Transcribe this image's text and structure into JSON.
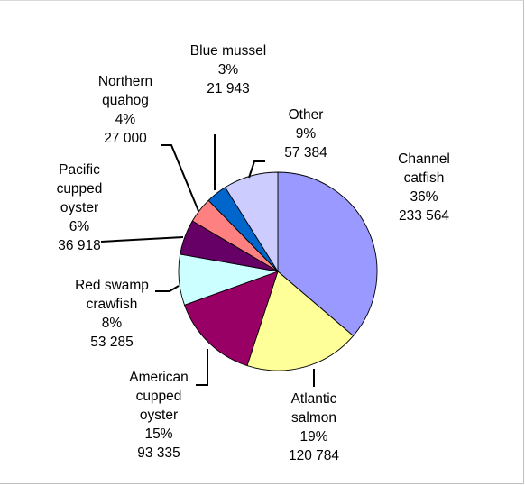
{
  "chart_data": {
    "type": "pie",
    "title": "",
    "legend": "none",
    "slices": [
      {
        "name": "Channel catfish",
        "name_lines": [
          "Channel",
          "catfish"
        ],
        "percent_label": "36%",
        "value": 233564,
        "value_label": "233 564",
        "color": "#9999FF"
      },
      {
        "name": "Atlantic salmon",
        "name_lines": [
          "Atlantic",
          "salmon"
        ],
        "percent_label": "19%",
        "value": 120784,
        "value_label": "120 784",
        "color": "#FFFF99"
      },
      {
        "name": "American cupped oyster",
        "name_lines": [
          "American",
          "cupped",
          "oyster"
        ],
        "percent_label": "15%",
        "value": 93335,
        "value_label": "93 335",
        "color": "#990066"
      },
      {
        "name": "Red swamp crawfish",
        "name_lines": [
          "Red swamp",
          "crawfish"
        ],
        "percent_label": "8%",
        "value": 53285,
        "value_label": "53 285",
        "color": "#CCFFFF"
      },
      {
        "name": "Pacific cupped oyster",
        "name_lines": [
          "Pacific",
          "cupped",
          "oyster"
        ],
        "percent_label": "6%",
        "value": 36918,
        "value_label": "36 918",
        "color": "#660066"
      },
      {
        "name": "Northern quahog",
        "name_lines": [
          "Northern",
          "quahog"
        ],
        "percent_label": "4%",
        "value": 27000,
        "value_label": "27 000",
        "color": "#FF8080"
      },
      {
        "name": "Blue mussel",
        "name_lines": [
          "Blue mussel"
        ],
        "percent_label": "3%",
        "value": 21943,
        "value_label": "21 943",
        "color": "#0066CC"
      },
      {
        "name": "Other",
        "name_lines": [
          "Other"
        ],
        "percent_label": "9%",
        "value": 57384,
        "value_label": "57 384",
        "color": "#CCCCFF"
      }
    ]
  }
}
